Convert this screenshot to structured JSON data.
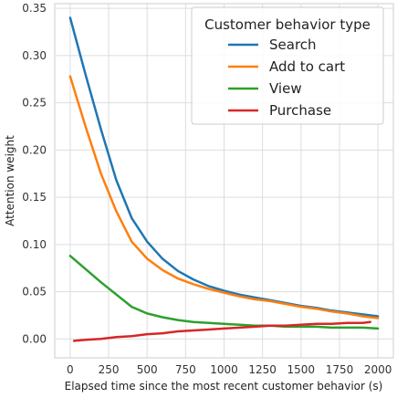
{
  "chart_data": {
    "type": "line",
    "xlabel": "Elapsed time since the most recent customer behavior (s)",
    "ylabel": "Attention weight",
    "xlim": [
      -100,
      2100
    ],
    "ylim": [
      -0.02,
      0.355
    ],
    "xticks": [
      0,
      250,
      500,
      750,
      1000,
      1250,
      1500,
      1750,
      2000
    ],
    "yticks": [
      0.0,
      0.05,
      0.1,
      0.15,
      0.2,
      0.25,
      0.3,
      0.35
    ],
    "grid": true,
    "legend": {
      "title": "Customer behavior type",
      "position": "top-right"
    },
    "series": [
      {
        "name": "Search",
        "color": "#1f77b4",
        "x": [
          0,
          100,
          200,
          300,
          400,
          500,
          600,
          700,
          800,
          900,
          1000,
          1100,
          1200,
          1300,
          1400,
          1500,
          1600,
          1700,
          1800,
          1900,
          2000
        ],
        "y": [
          0.34,
          0.28,
          0.222,
          0.168,
          0.128,
          0.103,
          0.085,
          0.072,
          0.063,
          0.056,
          0.051,
          0.047,
          0.044,
          0.041,
          0.038,
          0.035,
          0.033,
          0.03,
          0.028,
          0.026,
          0.024
        ]
      },
      {
        "name": "Add to cart",
        "color": "#ff7f0e",
        "x": [
          0,
          100,
          200,
          300,
          400,
          500,
          600,
          700,
          800,
          900,
          1000,
          1100,
          1200,
          1300,
          1400,
          1500,
          1600,
          1700,
          1800,
          1900,
          2000
        ],
        "y": [
          0.278,
          0.225,
          0.175,
          0.135,
          0.103,
          0.085,
          0.073,
          0.064,
          0.058,
          0.053,
          0.049,
          0.045,
          0.042,
          0.04,
          0.037,
          0.034,
          0.032,
          0.029,
          0.027,
          0.024,
          0.022
        ]
      },
      {
        "name": "View",
        "color": "#2ca02c",
        "x": [
          0,
          100,
          200,
          300,
          400,
          500,
          600,
          700,
          800,
          900,
          1000,
          1100,
          1200,
          1300,
          1400,
          1500,
          1600,
          1700,
          1800,
          1900,
          2000
        ],
        "y": [
          0.088,
          0.074,
          0.06,
          0.047,
          0.034,
          0.027,
          0.023,
          0.02,
          0.018,
          0.017,
          0.016,
          0.015,
          0.014,
          0.014,
          0.013,
          0.013,
          0.013,
          0.012,
          0.012,
          0.012,
          0.011
        ]
      },
      {
        "name": "Purchase",
        "color": "#d62728",
        "x": [
          25,
          100,
          200,
          300,
          400,
          500,
          600,
          700,
          800,
          900,
          1000,
          1100,
          1200,
          1300,
          1400,
          1500,
          1600,
          1700,
          1800,
          1900,
          1950
        ],
        "y": [
          -0.002,
          -0.001,
          0.0,
          0.002,
          0.003,
          0.005,
          0.006,
          0.008,
          0.009,
          0.01,
          0.011,
          0.012,
          0.013,
          0.014,
          0.014,
          0.015,
          0.016,
          0.016,
          0.017,
          0.017,
          0.018
        ]
      }
    ]
  }
}
